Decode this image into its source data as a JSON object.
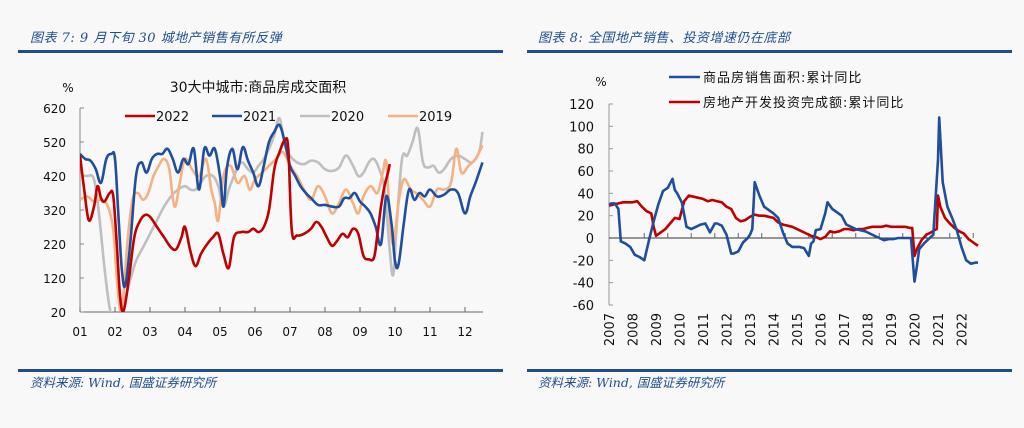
{
  "left_panel": {
    "figure_title": "图表 7:  9 月下旬 30 城地产销售有所反弹",
    "source": "资料来源:  Wind,  国盛证券研究所"
  },
  "right_panel": {
    "figure_title": "图表 8:  全国地产销售、投资增速仍在底部",
    "source": "资料来源:  Wind,  国盛证券研究所"
  },
  "chart_data": [
    {
      "type": "line",
      "title": "30大中城市:商品房成交面积",
      "ylabel": "%",
      "xlabel": "",
      "ylim": [
        20,
        620
      ],
      "yticks": [
        20,
        120,
        220,
        320,
        420,
        520,
        620
      ],
      "xticks": [
        "01",
        "02",
        "03",
        "04",
        "05",
        "06",
        "07",
        "08",
        "09",
        "10",
        "11",
        "12"
      ],
      "xlim": [
        1,
        12.5
      ],
      "legend_position": "top",
      "grid": false,
      "series": [
        {
          "name": "2022",
          "color": "#c00000",
          "x": [
            1.0,
            1.12,
            1.25,
            1.4,
            1.5,
            1.6,
            1.7,
            1.85,
            1.95,
            2.05,
            2.15,
            2.25,
            2.4,
            2.55,
            2.7,
            2.85,
            3.0,
            3.2,
            3.4,
            3.6,
            3.75,
            3.9,
            4.0,
            4.15,
            4.3,
            4.45,
            4.6,
            4.8,
            4.95,
            5.1,
            5.25,
            5.4,
            5.6,
            5.8,
            5.95,
            6.1,
            6.25,
            6.4,
            6.55,
            6.7,
            6.85,
            6.95,
            7.05,
            7.2,
            7.4,
            7.6,
            7.75,
            7.9,
            8.05,
            8.2,
            8.35,
            8.5,
            8.65,
            8.8,
            8.95,
            9.1,
            9.25,
            9.4,
            9.5,
            9.6,
            9.7,
            9.8,
            9.85
          ],
          "values": [
            480,
            380,
            290,
            330,
            390,
            355,
            345,
            370,
            360,
            220,
            60,
            25,
            120,
            240,
            285,
            305,
            300,
            270,
            240,
            210,
            205,
            240,
            270,
            200,
            155,
            190,
            215,
            240,
            250,
            190,
            150,
            240,
            255,
            255,
            265,
            255,
            270,
            320,
            440,
            490,
            525,
            500,
            260,
            245,
            250,
            265,
            285,
            270,
            240,
            215,
            230,
            250,
            240,
            265,
            250,
            185,
            175,
            180,
            250,
            330,
            390,
            430,
            455
          ]
        },
        {
          "name": "2021",
          "color": "#1f4e9c",
          "x": [
            1.0,
            1.15,
            1.3,
            1.45,
            1.6,
            1.75,
            1.9,
            2.0,
            2.1,
            2.2,
            2.3,
            2.45,
            2.6,
            2.75,
            2.9,
            3.05,
            3.2,
            3.35,
            3.5,
            3.65,
            3.8,
            3.95,
            4.1,
            4.25,
            4.4,
            4.55,
            4.7,
            4.85,
            5.0,
            5.1,
            5.2,
            5.35,
            5.5,
            5.65,
            5.8,
            5.95,
            6.1,
            6.25,
            6.4,
            6.55,
            6.7,
            6.85,
            7.0,
            7.15,
            7.3,
            7.45,
            7.6,
            7.8,
            8.0,
            8.2,
            8.4,
            8.55,
            8.7,
            8.85,
            9.0,
            9.15,
            9.3,
            9.45,
            9.6,
            9.75,
            9.9,
            10.0,
            10.1,
            10.25,
            10.4,
            10.55,
            10.7,
            10.85,
            11.0,
            11.2,
            11.4,
            11.6,
            11.8,
            12.0,
            12.15,
            12.3,
            12.5
          ],
          "values": [
            485,
            470,
            465,
            440,
            400,
            470,
            485,
            470,
            300,
            140,
            100,
            240,
            420,
            460,
            430,
            470,
            485,
            485,
            500,
            470,
            430,
            470,
            455,
            500,
            380,
            500,
            480,
            500,
            420,
            330,
            445,
            500,
            440,
            505,
            465,
            430,
            390,
            450,
            520,
            550,
            570,
            520,
            450,
            420,
            390,
            370,
            355,
            335,
            335,
            330,
            330,
            355,
            355,
            370,
            345,
            330,
            310,
            270,
            220,
            360,
            280,
            170,
            160,
            280,
            380,
            350,
            370,
            360,
            380,
            360,
            365,
            380,
            370,
            310,
            360,
            400,
            460
          ]
        },
        {
          "name": "2020",
          "color": "#bfbfbf",
          "x": [
            1.0,
            1.2,
            1.4,
            1.55,
            1.7,
            1.85,
            2.0,
            2.1,
            2.2,
            2.3,
            2.45,
            2.6,
            2.8,
            3.0,
            3.2,
            3.4,
            3.6,
            3.8,
            4.0,
            4.15,
            4.3,
            4.45,
            4.6,
            4.8,
            4.95,
            5.1,
            5.25,
            5.4,
            5.6,
            5.8,
            5.95,
            6.1,
            6.25,
            6.4,
            6.55,
            6.7,
            6.85,
            7.0,
            7.2,
            7.4,
            7.6,
            7.8,
            8.0,
            8.2,
            8.4,
            8.6,
            8.8,
            8.95,
            9.1,
            9.25,
            9.4,
            9.55,
            9.7,
            9.85,
            9.95,
            10.05,
            10.2,
            10.35,
            10.5,
            10.65,
            10.8,
            10.95,
            11.1,
            11.25,
            11.4,
            11.6,
            11.8,
            12.0,
            12.2,
            12.4,
            12.5
          ],
          "values": [
            420,
            420,
            410,
            300,
            150,
            30,
            -10,
            -20,
            0,
            60,
            120,
            170,
            210,
            250,
            290,
            330,
            360,
            380,
            390,
            380,
            380,
            400,
            420,
            420,
            390,
            330,
            380,
            420,
            460,
            440,
            430,
            450,
            470,
            500,
            540,
            590,
            510,
            480,
            460,
            455,
            465,
            460,
            440,
            435,
            445,
            480,
            450,
            420,
            430,
            460,
            470,
            440,
            380,
            200,
            130,
            280,
            470,
            480,
            520,
            560,
            460,
            445,
            450,
            430,
            440,
            470,
            480,
            470,
            460,
            490,
            550
          ]
        },
        {
          "name": "2019",
          "color": "#f4b183",
          "x": [
            1.0,
            1.2,
            1.4,
            1.6,
            1.8,
            1.95,
            2.05,
            2.15,
            2.25,
            2.35,
            2.5,
            2.65,
            2.8,
            2.95,
            3.1,
            3.25,
            3.4,
            3.55,
            3.7,
            3.85,
            4.0,
            4.2,
            4.4,
            4.6,
            4.75,
            4.85,
            4.95,
            5.1,
            5.3,
            5.5,
            5.7,
            5.85,
            6.0,
            6.2,
            6.4,
            6.6,
            6.8,
            7.0,
            7.2,
            7.4,
            7.6,
            7.8,
            8.0,
            8.2,
            8.4,
            8.6,
            8.8,
            8.95,
            9.1,
            9.3,
            9.5,
            9.65,
            9.75,
            9.85,
            9.95,
            10.1,
            10.25,
            10.45,
            10.6,
            10.8,
            11.0,
            11.2,
            11.4,
            11.6,
            11.75,
            11.9,
            12.1,
            12.3,
            12.5
          ],
          "values": [
            350,
            360,
            345,
            350,
            330,
            260,
            120,
            25,
            80,
            220,
            350,
            370,
            350,
            370,
            420,
            450,
            470,
            440,
            330,
            400,
            470,
            440,
            420,
            470,
            380,
            340,
            290,
            420,
            450,
            400,
            420,
            380,
            410,
            430,
            450,
            470,
            490,
            450,
            420,
            380,
            350,
            390,
            360,
            310,
            340,
            380,
            340,
            310,
            360,
            390,
            370,
            430,
            460,
            300,
            220,
            340,
            410,
            380,
            370,
            350,
            330,
            380,
            380,
            400,
            500,
            430,
            450,
            470,
            510
          ]
        }
      ]
    },
    {
      "type": "line",
      "title": "",
      "ylabel": "%",
      "xlabel": "",
      "ylim": [
        -60,
        120
      ],
      "yticks": [
        -60,
        -40,
        -20,
        0,
        20,
        40,
        60,
        80,
        100,
        120
      ],
      "xticks": [
        "2007",
        "2008",
        "2009",
        "2010",
        "2011",
        "2012",
        "2013",
        "2014",
        "2015",
        "2016",
        "2017",
        "2018",
        "2019",
        "2020",
        "2021",
        "2022"
      ],
      "xlim": [
        2007,
        2022.7
      ],
      "legend_position": "top",
      "grid": false,
      "series": [
        {
          "name": "商品房销售面积:累计同比",
          "color": "#1f4e9c",
          "x": [
            2007.0,
            2007.1,
            2007.25,
            2007.4,
            2007.5,
            2007.7,
            2007.9,
            2008.1,
            2008.3,
            2008.5,
            2008.7,
            2008.9,
            2009.1,
            2009.3,
            2009.5,
            2009.7,
            2009.8,
            2009.9,
            2010.1,
            2010.3,
            2010.5,
            2010.7,
            2010.9,
            2011.1,
            2011.3,
            2011.5,
            2011.6,
            2011.8,
            2012.0,
            2012.2,
            2012.3,
            2012.5,
            2012.7,
            2012.9,
            2013.0,
            2013.1,
            2013.2,
            2013.4,
            2013.6,
            2013.8,
            2014.0,
            2014.2,
            2014.4,
            2014.6,
            2014.8,
            2015.0,
            2015.1,
            2015.3,
            2015.5,
            2015.6,
            2015.7,
            2015.8,
            2016.0,
            2016.2,
            2016.3,
            2016.5,
            2016.7,
            2016.9,
            2017.1,
            2017.3,
            2017.5,
            2017.7,
            2017.9,
            2018.1,
            2018.3,
            2018.5,
            2018.7,
            2018.9,
            2019.1,
            2019.3,
            2019.5,
            2019.7,
            2019.85,
            2020.0,
            2020.1,
            2020.2,
            2020.4,
            2020.6,
            2020.8,
            2021.0,
            2021.05,
            2021.1,
            2021.2,
            2021.4,
            2021.6,
            2021.8,
            2022.0,
            2022.2,
            2022.4,
            2022.6,
            2022.7
          ],
          "values": [
            30,
            31,
            31,
            26,
            -3,
            -5,
            -8,
            -15,
            -17,
            -20,
            -2,
            15,
            30,
            42,
            45,
            53,
            43,
            40,
            32,
            10,
            8,
            10,
            12,
            13,
            5,
            13,
            13,
            11,
            3,
            -14,
            -14,
            -12,
            -4,
            0,
            3,
            8,
            50,
            38,
            28,
            25,
            22,
            18,
            5,
            -5,
            -8,
            -8,
            -8,
            -9,
            -16,
            -5,
            -3,
            7,
            8,
            22,
            32,
            26,
            23,
            20,
            12,
            10,
            8,
            7,
            6,
            4,
            2,
            0,
            -2,
            -1,
            -1,
            0,
            0,
            0,
            0,
            -39,
            -26,
            -10,
            -5,
            -1,
            3,
            70,
            108,
            90,
            50,
            28,
            18,
            7,
            -8,
            -20,
            -23,
            -22,
            -22
          ]
        },
        {
          "name": "房地产开发投资完成额:累计同比",
          "color": "#c00000",
          "x": [
            2007.0,
            2007.2,
            2007.4,
            2007.6,
            2007.8,
            2008.0,
            2008.2,
            2008.4,
            2008.6,
            2008.8,
            2008.9,
            2009.0,
            2009.2,
            2009.4,
            2009.6,
            2009.8,
            2010.0,
            2010.2,
            2010.4,
            2010.6,
            2010.8,
            2011.0,
            2011.2,
            2011.4,
            2011.6,
            2011.8,
            2012.0,
            2012.2,
            2012.4,
            2012.6,
            2012.8,
            2013.0,
            2013.2,
            2013.4,
            2013.6,
            2013.8,
            2014.0,
            2014.2,
            2014.4,
            2014.6,
            2014.8,
            2015.0,
            2015.2,
            2015.4,
            2015.6,
            2015.8,
            2016.0,
            2016.2,
            2016.4,
            2016.6,
            2016.8,
            2017.0,
            2017.2,
            2017.4,
            2017.6,
            2017.8,
            2018.0,
            2018.2,
            2018.4,
            2018.6,
            2018.8,
            2019.0,
            2019.2,
            2019.4,
            2019.6,
            2019.8,
            2019.9,
            2020.0,
            2020.1,
            2020.3,
            2020.5,
            2020.7,
            2020.85,
            2020.95,
            2021.0,
            2021.1,
            2021.3,
            2021.5,
            2021.7,
            2021.9,
            2022.1,
            2022.3,
            2022.5,
            2022.7
          ],
          "values": [
            29,
            30,
            31,
            32,
            32,
            32,
            33,
            28,
            24,
            22,
            10,
            2,
            5,
            8,
            13,
            18,
            17,
            33,
            38,
            37,
            36,
            35,
            33,
            34,
            33,
            32,
            28,
            26,
            18,
            15,
            16,
            19,
            21,
            20,
            20,
            19,
            18,
            14,
            12,
            11,
            10,
            8,
            6,
            4,
            2,
            1,
            -1,
            1,
            6,
            5,
            6,
            8,
            8,
            7,
            8,
            8,
            9,
            10,
            10,
            10,
            11,
            10,
            10,
            10,
            10,
            9,
            9,
            -16,
            -10,
            -2,
            3,
            5,
            7,
            8,
            38,
            28,
            18,
            13,
            9,
            6,
            4,
            -1,
            -4,
            -7
          ]
        }
      ]
    }
  ]
}
